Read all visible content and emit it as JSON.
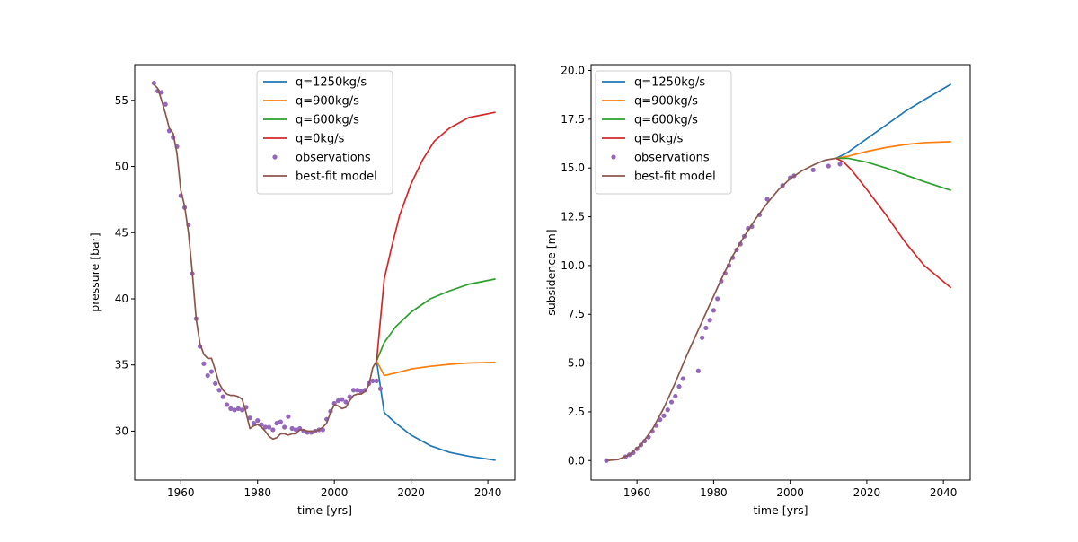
{
  "chart_data": [
    {
      "type": "line",
      "xlabel": "time [yrs]",
      "ylabel": "pressure [bar]",
      "xlim": [
        1948,
        2047
      ],
      "ylim": [
        26.3,
        57.7
      ],
      "xticks": [
        1960,
        1980,
        2000,
        2020,
        2040
      ],
      "yticks": [
        30,
        35,
        40,
        45,
        50,
        55
      ],
      "legend_position": "upper center",
      "grid": false,
      "series": [
        {
          "name": "q=1250kg/s",
          "color": "#1f77b4",
          "style": "line",
          "x": [
            2011,
            2013,
            2016,
            2020,
            2025,
            2030,
            2035,
            2042
          ],
          "y": [
            35.3,
            31.4,
            30.6,
            29.7,
            28.9,
            28.4,
            28.1,
            27.8
          ]
        },
        {
          "name": "q=900kg/s",
          "color": "#ff7f0e",
          "style": "line",
          "x": [
            2011,
            2013,
            2016,
            2020,
            2025,
            2030,
            2035,
            2042
          ],
          "y": [
            35.3,
            34.2,
            34.4,
            34.7,
            34.9,
            35.05,
            35.15,
            35.2
          ]
        },
        {
          "name": "q=600kg/s",
          "color": "#2ca02c",
          "style": "line",
          "x": [
            2011,
            2013,
            2016,
            2020,
            2025,
            2030,
            2035,
            2042
          ],
          "y": [
            35.3,
            36.7,
            37.9,
            39.0,
            40.0,
            40.6,
            41.1,
            41.5
          ]
        },
        {
          "name": "q=0kg/s",
          "color": "#d62728",
          "style": "line",
          "x": [
            2011,
            2013,
            2015,
            2017,
            2020,
            2023,
            2026,
            2030,
            2035,
            2042
          ],
          "y": [
            35.3,
            41.5,
            44.0,
            46.3,
            48.7,
            50.5,
            51.9,
            52.9,
            53.7,
            54.1
          ]
        },
        {
          "name": "observations",
          "color": "#9467bd",
          "style": "marker",
          "x": [
            1953,
            1954,
            1955,
            1956,
            1957,
            1958,
            1959,
            1960,
            1961,
            1962,
            1963,
            1964,
            1965,
            1966,
            1967,
            1968,
            1969,
            1970,
            1971,
            1972,
            1973,
            1974,
            1975,
            1976,
            1977,
            1978,
            1979,
            1980,
            1981,
            1982,
            1983,
            1984,
            1985,
            1986,
            1987,
            1988,
            1989,
            1990,
            1991,
            1992,
            1993,
            1994,
            1995,
            1996,
            1997,
            1998,
            1999,
            2000,
            2001,
            2002,
            2003,
            2004,
            2005,
            2006,
            2007,
            2008,
            2009,
            2010,
            2011,
            2012
          ],
          "y": [
            56.3,
            55.7,
            55.6,
            54.7,
            52.7,
            52.2,
            51.5,
            47.8,
            46.9,
            45.6,
            41.9,
            38.5,
            36.4,
            35.1,
            34.2,
            34.5,
            33.6,
            33.1,
            32.6,
            32.0,
            31.7,
            31.6,
            31.7,
            31.6,
            31.8,
            31.0,
            30.6,
            30.8,
            30.5,
            30.3,
            30.3,
            30.1,
            30.6,
            30.7,
            30.3,
            31.1,
            30.2,
            30.1,
            30.2,
            30.0,
            29.9,
            29.9,
            30.0,
            30.1,
            30.1,
            30.9,
            31.5,
            32.1,
            32.3,
            32.4,
            32.2,
            32.6,
            33.1,
            33.1,
            33.0,
            33.1,
            33.6,
            33.8,
            33.8,
            33.2
          ]
        },
        {
          "name": "best-fit model",
          "color": "#8c564b",
          "style": "line",
          "x": [
            1953,
            1954,
            1955,
            1956,
            1957,
            1958,
            1959,
            1960,
            1961,
            1962,
            1963,
            1964,
            1965,
            1966,
            1967,
            1968,
            1969,
            1970,
            1971,
            1972,
            1973,
            1974,
            1975,
            1976,
            1977,
            1978,
            1979,
            1980,
            1981,
            1982,
            1983,
            1984,
            1985,
            1986,
            1987,
            1988,
            1989,
            1990,
            1991,
            1992,
            1993,
            1994,
            1995,
            1996,
            1997,
            1998,
            1999,
            2000,
            2001,
            2002,
            2003,
            2004,
            2005,
            2006,
            2007,
            2008,
            2009,
            2010,
            2011
          ],
          "y": [
            56.2,
            55.9,
            55.0,
            54.0,
            52.9,
            52.5,
            51.0,
            48.2,
            47.0,
            45.0,
            42.0,
            38.5,
            36.6,
            35.8,
            35.5,
            35.5,
            34.6,
            33.6,
            33.1,
            32.8,
            32.7,
            32.7,
            32.6,
            32.4,
            31.4,
            30.2,
            30.4,
            30.5,
            30.3,
            30.0,
            29.6,
            29.4,
            29.5,
            29.8,
            29.8,
            29.7,
            29.8,
            29.8,
            30.1,
            30.1,
            30.0,
            30.0,
            30.0,
            30.1,
            30.3,
            30.6,
            31.4,
            32.0,
            31.9,
            31.7,
            31.8,
            32.3,
            32.7,
            32.8,
            32.8,
            33.0,
            33.5,
            34.8,
            35.3
          ]
        }
      ]
    },
    {
      "type": "line",
      "xlabel": "time [yrs]",
      "ylabel": "subsidence [m]",
      "xlim": [
        1948,
        2047
      ],
      "ylim": [
        -1.0,
        20.3
      ],
      "xticks": [
        1960,
        1980,
        2000,
        2020,
        2040
      ],
      "yticks": [
        "0.0",
        "2.5",
        "5.0",
        "7.5",
        "10.0",
        "12.5",
        "15.0",
        "17.5",
        "20.0"
      ],
      "legend_position": "upper left",
      "grid": false,
      "series": [
        {
          "name": "q=1250kg/s",
          "color": "#1f77b4",
          "style": "line",
          "x": [
            2012,
            2015,
            2020,
            2025,
            2030,
            2035,
            2042
          ],
          "y": [
            15.5,
            15.8,
            16.5,
            17.2,
            17.9,
            18.5,
            19.3
          ]
        },
        {
          "name": "q=900kg/s",
          "color": "#ff7f0e",
          "style": "line",
          "x": [
            2012,
            2015,
            2020,
            2025,
            2030,
            2035,
            2042
          ],
          "y": [
            15.5,
            15.6,
            15.85,
            16.05,
            16.2,
            16.3,
            16.35
          ]
        },
        {
          "name": "q=600kg/s",
          "color": "#2ca02c",
          "style": "line",
          "x": [
            2012,
            2015,
            2020,
            2025,
            2030,
            2035,
            2042
          ],
          "y": [
            15.5,
            15.5,
            15.3,
            15.0,
            14.65,
            14.3,
            13.85
          ]
        },
        {
          "name": "q=0kg/s",
          "color": "#d62728",
          "style": "line",
          "x": [
            2012,
            2014,
            2016,
            2020,
            2025,
            2030,
            2035,
            2042
          ],
          "y": [
            15.5,
            15.3,
            14.9,
            13.9,
            12.6,
            11.2,
            10.0,
            8.85
          ]
        },
        {
          "name": "observations",
          "color": "#9467bd",
          "style": "marker",
          "x": [
            1952,
            1957,
            1958,
            1959,
            1960,
            1961,
            1962,
            1963,
            1964,
            1965,
            1966,
            1967,
            1968,
            1969,
            1970,
            1971,
            1972,
            1976,
            1977,
            1978,
            1979,
            1980,
            1981,
            1982,
            1983,
            1984,
            1985,
            1986,
            1987,
            1988,
            1989,
            1990,
            1992,
            1994,
            1998,
            2000,
            2001,
            2006,
            2010,
            2013
          ],
          "y": [
            0.0,
            0.2,
            0.3,
            0.4,
            0.6,
            0.8,
            1.0,
            1.2,
            1.5,
            1.8,
            2.1,
            2.3,
            2.6,
            3.0,
            3.3,
            3.8,
            4.2,
            4.6,
            6.3,
            6.8,
            7.2,
            7.7,
            8.3,
            9.2,
            9.6,
            10.0,
            10.4,
            10.8,
            11.1,
            11.5,
            11.9,
            12.0,
            12.6,
            13.4,
            14.1,
            14.5,
            14.6,
            14.9,
            15.1,
            15.2
          ]
        },
        {
          "name": "best-fit model",
          "color": "#8c564b",
          "style": "line",
          "x": [
            1952,
            1955,
            1958,
            1961,
            1964,
            1967,
            1970,
            1973,
            1976,
            1979,
            1982,
            1985,
            1988,
            1991,
            1994,
            1997,
            2000,
            2003,
            2006,
            2009,
            2012
          ],
          "y": [
            0.0,
            0.05,
            0.3,
            0.8,
            1.6,
            2.7,
            4.0,
            5.4,
            6.7,
            8.0,
            9.3,
            10.5,
            11.5,
            12.4,
            13.2,
            13.9,
            14.45,
            14.85,
            15.15,
            15.4,
            15.5
          ]
        }
      ]
    }
  ]
}
